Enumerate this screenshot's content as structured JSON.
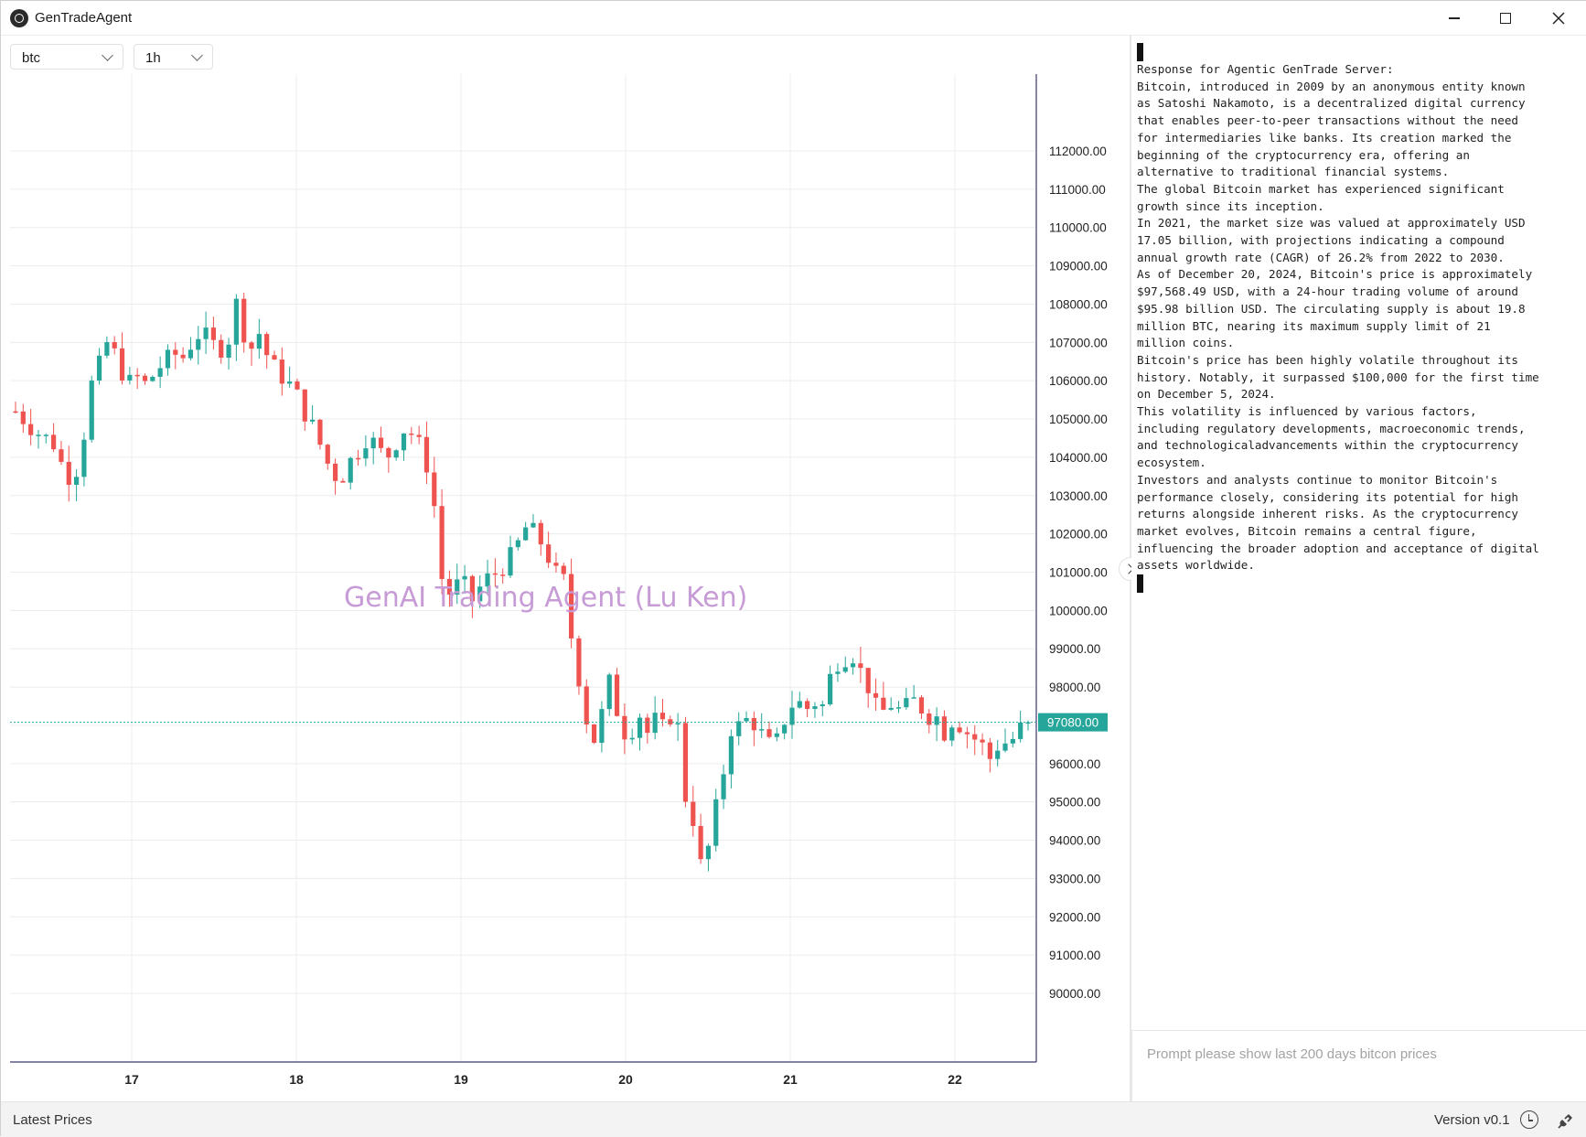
{
  "titlebar": {
    "title": "GenTradeAgent"
  },
  "toolbar": {
    "symbol": "btc",
    "interval": "1h"
  },
  "chart": {
    "watermark": "GenAI Trading Agent (Lu Ken)",
    "current_price_label": "97080.00"
  },
  "chart_data": {
    "type": "candlestick",
    "x_tick_labels": [
      "17",
      "18",
      "19",
      "20",
      "21",
      "22"
    ],
    "y_tick_labels": [
      "112000.00",
      "111000.00",
      "110000.00",
      "109000.00",
      "108000.00",
      "107000.00",
      "106000.00",
      "105000.00",
      "104000.00",
      "103000.00",
      "102000.00",
      "101000.00",
      "100000.00",
      "99000.00",
      "98000.00",
      "97000.00",
      "96000.00",
      "95000.00",
      "94000.00",
      "93000.00",
      "92000.00",
      "91000.00",
      "90000.00"
    ],
    "ylim": [
      90000,
      112500
    ],
    "last_price": 97080,
    "up_color": "#26a69a",
    "down_color": "#ef5350",
    "grid": true,
    "close_path": [
      [
        0,
        105200
      ],
      [
        2,
        104700
      ],
      [
        4,
        104400
      ],
      [
        5,
        103800
      ],
      [
        6,
        103400
      ],
      [
        7,
        103900
      ],
      [
        8,
        105800
      ],
      [
        9,
        106400
      ],
      [
        10,
        107100
      ],
      [
        11,
        106500
      ],
      [
        12,
        105900
      ],
      [
        13,
        106100
      ],
      [
        14,
        105900
      ],
      [
        15,
        106200
      ],
      [
        16,
        106500
      ],
      [
        17,
        106700
      ],
      [
        18,
        106600
      ],
      [
        19,
        107000
      ],
      [
        20,
        107300
      ],
      [
        21,
        107000
      ],
      [
        22,
        106800
      ],
      [
        23,
        107100
      ],
      [
        24,
        108300
      ],
      [
        25,
        106500
      ],
      [
        26,
        107400
      ],
      [
        27,
        106700
      ],
      [
        28,
        106300
      ],
      [
        29,
        106000
      ],
      [
        30,
        105800
      ],
      [
        31,
        105200
      ],
      [
        32,
        104800
      ],
      [
        33,
        104200
      ],
      [
        34,
        103600
      ],
      [
        35,
        103400
      ],
      [
        36,
        103900
      ],
      [
        37,
        104200
      ],
      [
        38,
        104600
      ],
      [
        39,
        104200
      ],
      [
        40,
        104000
      ],
      [
        41,
        104400
      ],
      [
        42,
        104800
      ],
      [
        43,
        104500
      ],
      [
        44,
        104100
      ],
      [
        45,
        102900
      ],
      [
        46,
        100600
      ],
      [
        47,
        100400
      ],
      [
        48,
        100900
      ],
      [
        49,
        100200
      ],
      [
        50,
        100600
      ],
      [
        51,
        100900
      ],
      [
        52,
        101000
      ],
      [
        53,
        101300
      ],
      [
        54,
        101700
      ],
      [
        55,
        102200
      ],
      [
        56,
        102000
      ],
      [
        57,
        101600
      ],
      [
        58,
        101000
      ],
      [
        59,
        100800
      ],
      [
        60,
        99000
      ],
      [
        61,
        97800
      ],
      [
        62,
        96400
      ],
      [
        63,
        97200
      ],
      [
        64,
        98200
      ],
      [
        65,
        97100
      ],
      [
        66,
        96600
      ],
      [
        67,
        97400
      ],
      [
        68,
        96800
      ],
      [
        69,
        97200
      ],
      [
        70,
        96800
      ],
      [
        71,
        97700
      ],
      [
        72,
        95200
      ],
      [
        73,
        94500
      ],
      [
        74,
        93000
      ],
      [
        75,
        94400
      ],
      [
        76,
        95500
      ],
      [
        77,
        96900
      ],
      [
        78,
        97000
      ],
      [
        79,
        97200
      ],
      [
        80,
        96900
      ],
      [
        81,
        96500
      ],
      [
        82,
        96600
      ],
      [
        83,
        97300
      ],
      [
        84,
        97700
      ],
      [
        85,
        97400
      ],
      [
        86,
        97600
      ],
      [
        87,
        97500
      ],
      [
        88,
        98600
      ],
      [
        89,
        98700
      ],
      [
        90,
        98900
      ],
      [
        91,
        98400
      ],
      [
        92,
        97900
      ],
      [
        93,
        97200
      ],
      [
        94,
        97600
      ],
      [
        95,
        97400
      ],
      [
        96,
        97500
      ],
      [
        97,
        97700
      ],
      [
        98,
        97200
      ],
      [
        99,
        97300
      ],
      [
        100,
        96800
      ],
      [
        101,
        97200
      ],
      [
        102,
        96900
      ],
      [
        103,
        96700
      ],
      [
        104,
        96500
      ],
      [
        105,
        96100
      ],
      [
        106,
        96600
      ],
      [
        107,
        96500
      ],
      [
        108,
        96900
      ],
      [
        109,
        97080
      ]
    ]
  },
  "response": {
    "lines": [
      "Response for Agentic GenTrade Server:",
      "Bitcoin, introduced in 2009 by an anonymous entity known",
      "as Satoshi Nakamoto, is a decentralized digital currency",
      "that enables peer-to-peer transactions without the need",
      "for intermediaries like banks. Its creation marked the",
      "beginning of the cryptocurrency era, offering an",
      "alternative to traditional financial systems.",
      "The global Bitcoin market has experienced significant",
      "growth since its inception.",
      "In 2021, the market size was valued at approximately USD",
      "17.05 billion, with projections indicating a compound",
      "annual growth rate (CAGR) of 26.2% from 2022 to 2030.",
      "As of December 20, 2024, Bitcoin's price is approximately",
      "$97,568.49 USD, with a 24-hour trading volume of around",
      "$95.98 billion USD. The circulating supply is about 19.8",
      "million BTC, nearing its maximum supply limit of 21",
      "million coins.",
      "Bitcoin's price has been highly volatile throughout its",
      "history. Notably, it surpassed $100,000 for the first time",
      "on December 5, 2024.",
      "This volatility is influenced by various factors,",
      "including regulatory developments, macroeconomic trends,",
      "and technologicaladvancements within the cryptocurrency",
      "ecosystem.",
      "Investors and analysts continue to monitor Bitcoin's",
      "performance closely, considering its potential for high",
      "returns alongside inherent risks. As the cryptocurrency",
      "market evolves, Bitcoin remains a central figure,",
      "influencing the broader adoption and acceptance of digital",
      "assets worldwide."
    ]
  },
  "prompt": {
    "placeholder": "Prompt please show last 200 days bitcon prices"
  },
  "statusbar": {
    "left": "Latest Prices",
    "version": "Version v0.1"
  },
  "icons": {
    "app": "gentradeagent-logo-icon",
    "minimize": "minimize-icon",
    "maximize": "maximize-icon",
    "close": "close-icon",
    "clock": "clock-icon",
    "plug": "plug-icon"
  }
}
